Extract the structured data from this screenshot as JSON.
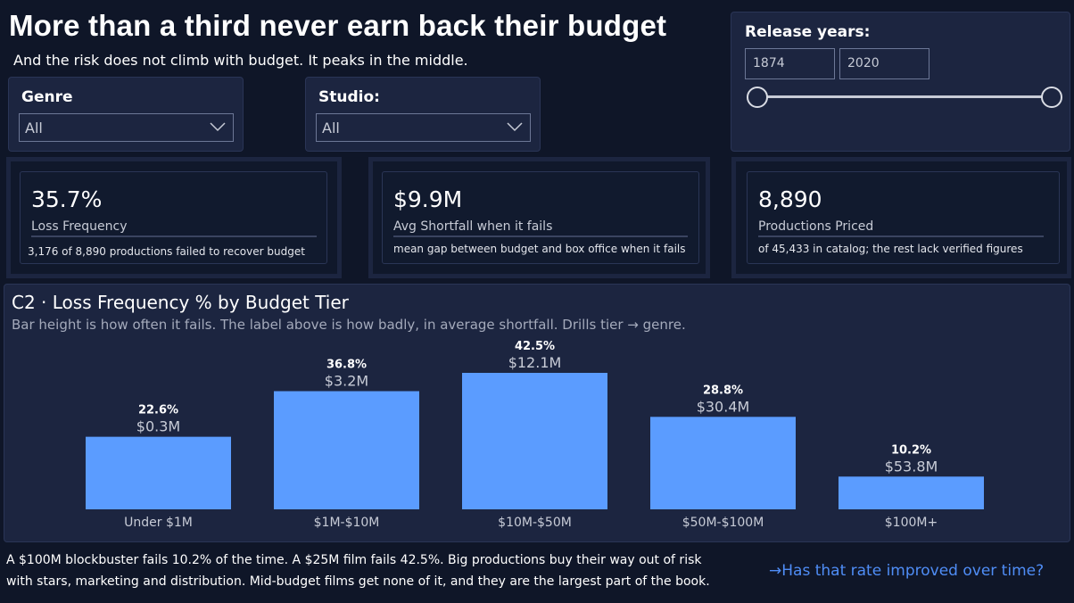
{
  "header": {
    "title": "More than a third never earn back their budget",
    "subtitle": "And the risk does not climb with budget. It peaks in the middle."
  },
  "filters": {
    "genre": {
      "label": "Genre",
      "value": "All"
    },
    "studio": {
      "label": "Studio:",
      "value": "All"
    },
    "release_years": {
      "label": "Release years:",
      "start": "1874",
      "end": "2020"
    }
  },
  "kpis": [
    {
      "value": "35.7%",
      "label": "Loss Frequency",
      "note": "3,176 of 8,890 productions failed to recover budget"
    },
    {
      "value": "$9.9M",
      "label": "Avg Shortfall when it fails",
      "note": "mean gap between budget and box office when it fails"
    },
    {
      "value": "8,890",
      "label": "Productions Priced",
      "note": "of 45,433 in catalog; the rest lack verified figures"
    }
  ],
  "chart": {
    "title": "C2 · Loss Frequency % by Budget Tier",
    "subtitle": "Bar height is how often it fails. The label above is how badly, in average shortfall. Drills tier → genre."
  },
  "chart_data": {
    "type": "bar",
    "categories": [
      "Under $1M",
      "$1M-$10M",
      "$10M-$50M",
      "$50M-$100M",
      "$100M+"
    ],
    "series": [
      {
        "values": [
          22.6,
          36.8,
          42.5,
          28.8,
          10.2
        ]
      }
    ],
    "pct_labels": [
      "22.6%",
      "36.8%",
      "42.5%",
      "28.8%",
      "10.2%"
    ],
    "shortfall_labels": [
      "$0.3M",
      "$3.2M",
      "$12.1M",
      "$30.4M",
      "$53.8M"
    ],
    "ylim": [
      0,
      50
    ],
    "bar_color": "#5b9cff",
    "grid": false
  },
  "footer": {
    "line1": "A $100M blockbuster fails 10.2% of the time. A $25M film fails 42.5%. Big productions buy their way out of risk",
    "line2": "with stars, marketing and distribution. Mid-budget films get none of it, and they are the largest part of the book.",
    "link": "→Has that rate improved over time?"
  },
  "colors": {
    "background": "#0f1628",
    "panel": "#1c2540",
    "accent": "#5b9cff",
    "link": "#4f8df6"
  }
}
